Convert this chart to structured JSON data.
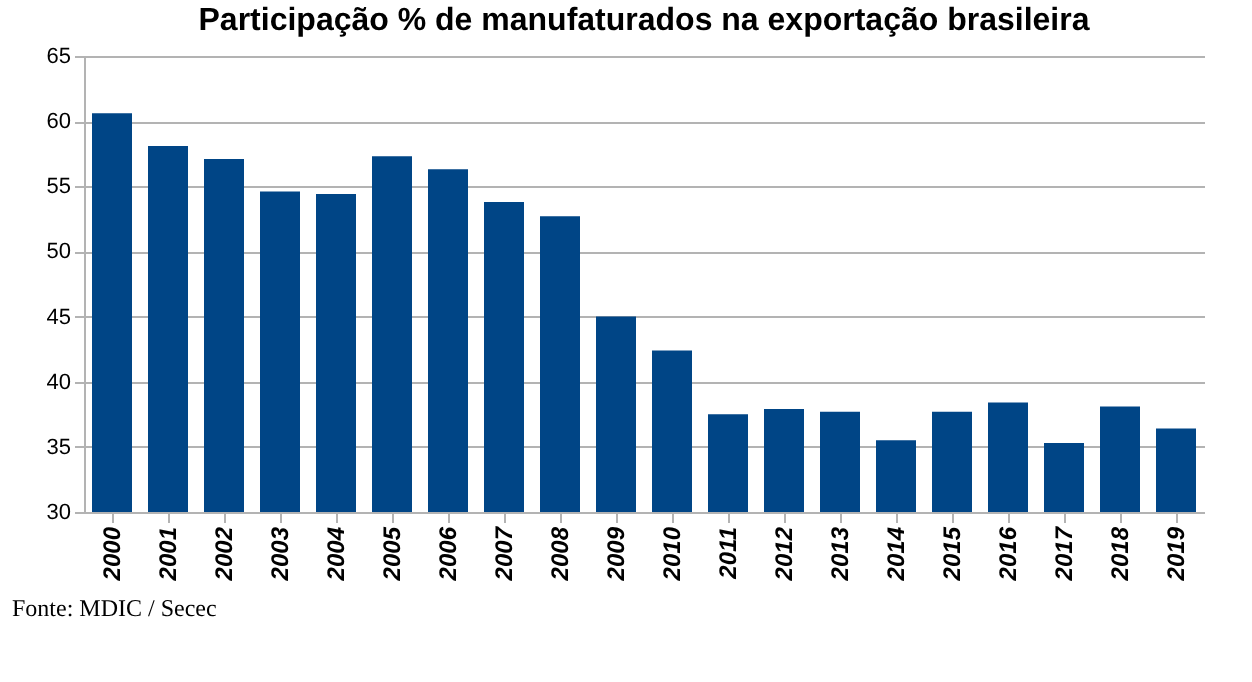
{
  "chart_data": {
    "type": "bar",
    "title": "Participação % de manufaturados na exportação brasileira",
    "categories": [
      "2000",
      "2001",
      "2002",
      "2003",
      "2004",
      "2005",
      "2006",
      "2007",
      "2008",
      "2009",
      "2010",
      "2011",
      "2012",
      "2013",
      "2014",
      "2015",
      "2016",
      "2017",
      "2018",
      "2019"
    ],
    "values": [
      60.6,
      58.1,
      57.1,
      54.6,
      54.4,
      57.3,
      56.3,
      53.8,
      52.7,
      45.0,
      42.4,
      37.5,
      37.9,
      37.7,
      35.5,
      37.7,
      38.4,
      35.3,
      38.1,
      36.4
    ],
    "color": "#004586",
    "ylim": [
      30,
      65
    ],
    "yticks": [
      30,
      35,
      40,
      45,
      50,
      55,
      60,
      65
    ],
    "grid": "y",
    "annotations": [
      "Fonte: MDIC / Secec"
    ]
  }
}
